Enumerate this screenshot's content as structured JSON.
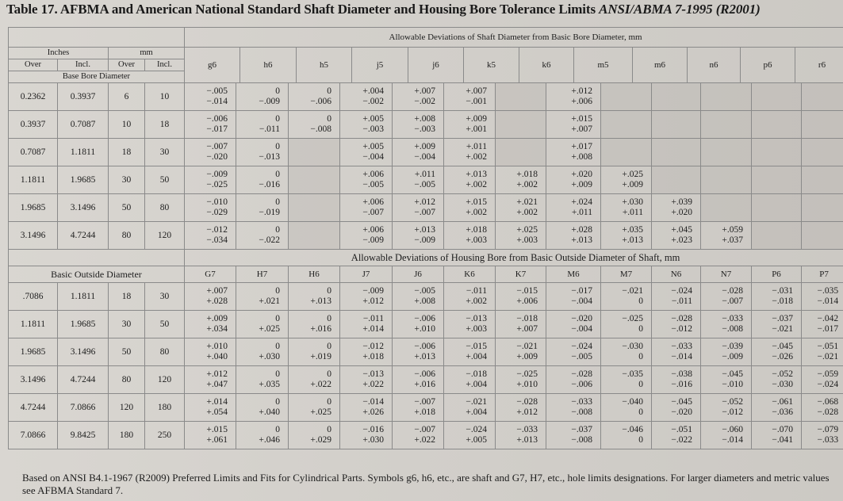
{
  "title": {
    "main": "Table 17. AFBMA and American National Standard Shaft Diameter and Housing Bore Tolerance Limits",
    "std": "ANSI/ABMA 7-1995 (R2001)"
  },
  "shaft": {
    "section_title": "Allowable Deviations of Shaft Diameter from Basic Bore Diameter, mm",
    "unit_inches": "Inches",
    "unit_mm": "mm",
    "over": "Over",
    "incl": "Incl.",
    "basis": "Base Bore Diameter",
    "columns": [
      "g6",
      "h6",
      "h5",
      "j5",
      "j6",
      "k5",
      "k6",
      "m5",
      "m6",
      "n6",
      "p6",
      "r6",
      "r7"
    ],
    "rows": [
      {
        "in_over": "0.2362",
        "in_incl": "0.3937",
        "mm_over": "6",
        "mm_incl": "10",
        "cells": [
          [
            "−.005",
            "−.014"
          ],
          [
            "0",
            "−.009"
          ],
          [
            "0",
            "−.006"
          ],
          [
            "+.004",
            "−.002"
          ],
          [
            "+.007",
            "−.002"
          ],
          [
            "+.007",
            "−.001"
          ],
          [
            "",
            ""
          ],
          [
            "+.012",
            "+.006"
          ],
          [
            "",
            ""
          ],
          [
            "",
            ""
          ],
          [
            "",
            ""
          ],
          [
            "",
            ""
          ],
          [
            "",
            ""
          ]
        ]
      },
      {
        "in_over": "0.3937",
        "in_incl": "0.7087",
        "mm_over": "10",
        "mm_incl": "18",
        "cells": [
          [
            "−.006",
            "−.017"
          ],
          [
            "0",
            "−.011"
          ],
          [
            "0",
            "−.008"
          ],
          [
            "+.005",
            "−.003"
          ],
          [
            "+.008",
            "−.003"
          ],
          [
            "+.009",
            "+.001"
          ],
          [
            "",
            ""
          ],
          [
            "+.015",
            "+.007"
          ],
          [
            "",
            ""
          ],
          [
            "",
            ""
          ],
          [
            "",
            ""
          ],
          [
            "",
            ""
          ],
          [
            "",
            ""
          ]
        ]
      },
      {
        "in_over": "0.7087",
        "in_incl": "1.1811",
        "mm_over": "18",
        "mm_incl": "30",
        "cells": [
          [
            "−.007",
            "−.020"
          ],
          [
            "0",
            "−.013"
          ],
          [
            "",
            ""
          ],
          [
            "+.005",
            "−.004"
          ],
          [
            "+.009",
            "−.004"
          ],
          [
            "+.011",
            "+.002"
          ],
          [
            "",
            ""
          ],
          [
            "+.017",
            "+.008"
          ],
          [
            "",
            ""
          ],
          [
            "",
            ""
          ],
          [
            "",
            ""
          ],
          [
            "",
            ""
          ],
          [
            "",
            ""
          ]
        ]
      },
      {
        "in_over": "1.1811",
        "in_incl": "1.9685",
        "mm_over": "30",
        "mm_incl": "50",
        "cells": [
          [
            "−.009",
            "−.025"
          ],
          [
            "0",
            "−.016"
          ],
          [
            "",
            ""
          ],
          [
            "+.006",
            "−.005"
          ],
          [
            "+.011",
            "−.005"
          ],
          [
            "+.013",
            "+.002"
          ],
          [
            "+.018",
            "+.002"
          ],
          [
            "+.020",
            "+.009"
          ],
          [
            "+.025",
            "+.009"
          ],
          [
            "",
            ""
          ],
          [
            "",
            ""
          ],
          [
            "",
            ""
          ],
          [
            "",
            ""
          ]
        ]
      },
      {
        "in_over": "1.9685",
        "in_incl": "3.1496",
        "mm_over": "50",
        "mm_incl": "80",
        "cells": [
          [
            "−.010",
            "−.029"
          ],
          [
            "0",
            "−.019"
          ],
          [
            "",
            ""
          ],
          [
            "+.006",
            "−.007"
          ],
          [
            "+.012",
            "−.007"
          ],
          [
            "+.015",
            "+.002"
          ],
          [
            "+.021",
            "+.002"
          ],
          [
            "+.024",
            "+.011"
          ],
          [
            "+.030",
            "+.011"
          ],
          [
            "+.039",
            "+.020"
          ],
          [
            "",
            ""
          ],
          [
            "",
            ""
          ],
          [
            "",
            ""
          ]
        ]
      },
      {
        "in_over": "3.1496",
        "in_incl": "4.7244",
        "mm_over": "80",
        "mm_incl": "120",
        "cells": [
          [
            "−.012",
            "−.034"
          ],
          [
            "0",
            "−.022"
          ],
          [
            "",
            ""
          ],
          [
            "+.006",
            "−.009"
          ],
          [
            "+.013",
            "−.009"
          ],
          [
            "+.018",
            "+.003"
          ],
          [
            "+.025",
            "+.003"
          ],
          [
            "+.028",
            "+.013"
          ],
          [
            "+.035",
            "+.013"
          ],
          [
            "+.045",
            "+.023"
          ],
          [
            "+.059",
            "+.037"
          ],
          [
            "",
            ""
          ],
          [
            "",
            ""
          ]
        ]
      }
    ]
  },
  "housing": {
    "section_title": "Allowable Deviations of Housing Bore from Basic Outside Diameter of Shaft, mm",
    "basis": "Basic Outside Diameter",
    "columns": [
      "G7",
      "H7",
      "H6",
      "J7",
      "J6",
      "K6",
      "K7",
      "M6",
      "M7",
      "N6",
      "N7",
      "P6",
      "P7"
    ],
    "rows": [
      {
        "in_over": ".7086",
        "in_incl": "1.1811",
        "mm_over": "18",
        "mm_incl": "30",
        "cells": [
          [
            "+.007",
            "+.028"
          ],
          [
            "0",
            "+.021"
          ],
          [
            "0",
            "+.013"
          ],
          [
            "−.009",
            "+.012"
          ],
          [
            "−.005",
            "+.008"
          ],
          [
            "−.011",
            "+.002"
          ],
          [
            "−.015",
            "+.006"
          ],
          [
            "−.017",
            "−.004"
          ],
          [
            "−.021",
            "0"
          ],
          [
            "−.024",
            "−.011"
          ],
          [
            "−.028",
            "−.007"
          ],
          [
            "−.031",
            "−.018"
          ],
          [
            "−.035",
            "−.014"
          ]
        ]
      },
      {
        "in_over": "1.1811",
        "in_incl": "1.9685",
        "mm_over": "30",
        "mm_incl": "50",
        "cells": [
          [
            "+.009",
            "+.034"
          ],
          [
            "0",
            "+.025"
          ],
          [
            "0",
            "+.016"
          ],
          [
            "−.011",
            "+.014"
          ],
          [
            "−.006",
            "+.010"
          ],
          [
            "−.013",
            "+.003"
          ],
          [
            "−.018",
            "+.007"
          ],
          [
            "−.020",
            "−.004"
          ],
          [
            "−.025",
            "0"
          ],
          [
            "−.028",
            "−.012"
          ],
          [
            "−.033",
            "−.008"
          ],
          [
            "−.037",
            "−.021"
          ],
          [
            "−.042",
            "−.017"
          ]
        ]
      },
      {
        "in_over": "1.9685",
        "in_incl": "3.1496",
        "mm_over": "50",
        "mm_incl": "80",
        "cells": [
          [
            "+.010",
            "+.040"
          ],
          [
            "0",
            "+.030"
          ],
          [
            "0",
            "+.019"
          ],
          [
            "−.012",
            "+.018"
          ],
          [
            "−.006",
            "+.013"
          ],
          [
            "−.015",
            "+.004"
          ],
          [
            "−.021",
            "+.009"
          ],
          [
            "−.024",
            "−.005"
          ],
          [
            "−.030",
            "0"
          ],
          [
            "−.033",
            "−.014"
          ],
          [
            "−.039",
            "−.009"
          ],
          [
            "−.045",
            "−.026"
          ],
          [
            "−.051",
            "−.021"
          ]
        ]
      },
      {
        "in_over": "3.1496",
        "in_incl": "4.7244",
        "mm_over": "80",
        "mm_incl": "120",
        "cells": [
          [
            "+.012",
            "+.047"
          ],
          [
            "0",
            "+.035"
          ],
          [
            "0",
            "+.022"
          ],
          [
            "−.013",
            "+.022"
          ],
          [
            "−.006",
            "+.016"
          ],
          [
            "−.018",
            "+.004"
          ],
          [
            "−.025",
            "+.010"
          ],
          [
            "−.028",
            "−.006"
          ],
          [
            "−.035",
            "0"
          ],
          [
            "−.038",
            "−.016"
          ],
          [
            "−.045",
            "−.010"
          ],
          [
            "−.052",
            "−.030"
          ],
          [
            "−.059",
            "−.024"
          ]
        ]
      },
      {
        "in_over": "4.7244",
        "in_incl": "7.0866",
        "mm_over": "120",
        "mm_incl": "180",
        "cells": [
          [
            "+.014",
            "+.054"
          ],
          [
            "0",
            "+.040"
          ],
          [
            "0",
            "+.025"
          ],
          [
            "−.014",
            "+.026"
          ],
          [
            "−.007",
            "+.018"
          ],
          [
            "−.021",
            "+.004"
          ],
          [
            "−.028",
            "+.012"
          ],
          [
            "−.033",
            "−.008"
          ],
          [
            "−.040",
            "0"
          ],
          [
            "−.045",
            "−.020"
          ],
          [
            "−.052",
            "−.012"
          ],
          [
            "−.061",
            "−.036"
          ],
          [
            "−.068",
            "−.028"
          ]
        ]
      },
      {
        "in_over": "7.0866",
        "in_incl": "9.8425",
        "mm_over": "180",
        "mm_incl": "250",
        "cells": [
          [
            "+.015",
            "+.061"
          ],
          [
            "0",
            "+.046"
          ],
          [
            "0",
            "+.029"
          ],
          [
            "−.016",
            "+.030"
          ],
          [
            "−.007",
            "+.022"
          ],
          [
            "−.024",
            "+.005"
          ],
          [
            "−.033",
            "+.013"
          ],
          [
            "−.037",
            "−.008"
          ],
          [
            "−.046",
            "0"
          ],
          [
            "−.051",
            "−.022"
          ],
          [
            "−.060",
            "−.014"
          ],
          [
            "−.070",
            "−.041"
          ],
          [
            "−.079",
            "−.033"
          ]
        ]
      }
    ]
  },
  "footnote": "Based on ANSI B4.1-1967 (R2009) Preferred Limits and Fits for Cylindrical Parts. Symbols g6, h6, etc., are shaft and G7, H7, etc., hole limits designations. For larger diameters and metric values see AFBMA Standard 7."
}
